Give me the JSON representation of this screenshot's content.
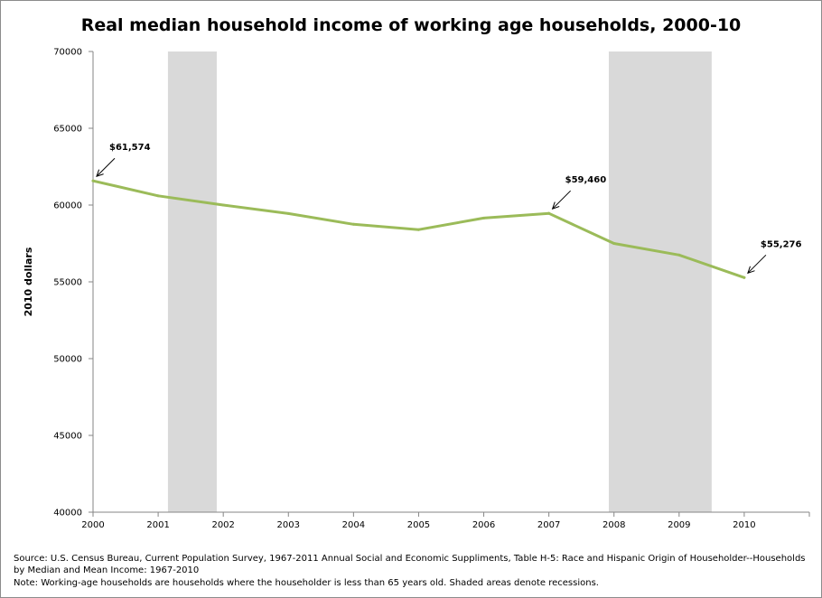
{
  "chart_data": {
    "type": "line",
    "title": "Real median household income of working age households, 2000-10",
    "xlabel": "",
    "ylabel": "2010 dollars",
    "x": [
      2000,
      2001,
      2002,
      2003,
      2004,
      2005,
      2006,
      2007,
      2008,
      2009,
      2010
    ],
    "x_tick_labels": [
      "2000",
      "2001",
      "2002",
      "2003",
      "2004",
      "2005",
      "2006",
      "2007",
      "2008",
      "2009",
      "2010"
    ],
    "xlim": [
      2000,
      2011
    ],
    "ylim": [
      40000,
      70000
    ],
    "y_ticks": [
      40000,
      45000,
      50000,
      55000,
      60000,
      65000,
      70000
    ],
    "y_tick_labels": [
      "40000",
      "45000",
      "50000",
      "55000",
      "60000",
      "65000",
      "70000"
    ],
    "grid": false,
    "legend": "none",
    "series": [
      {
        "values": [
          61574,
          60600,
          60000,
          59450,
          58750,
          58400,
          59150,
          59460,
          57500,
          56750,
          55276
        ],
        "color": "#9bbb59"
      }
    ],
    "recessions": [
      {
        "start": 2001.15,
        "end": 2001.9
      },
      {
        "start": 2007.92,
        "end": 2009.5
      }
    ],
    "recession_color": "#d9d9d9",
    "annotations": [
      {
        "text": "$61,574",
        "x": 2000,
        "y": 61574,
        "label_anchor": "upper-right"
      },
      {
        "text": "$59,460",
        "x": 2007,
        "y": 59460,
        "label_anchor": "upper-right"
      },
      {
        "text": "$55,276",
        "x": 2010,
        "y": 55276,
        "label_anchor": "upper-right"
      }
    ]
  },
  "source_note": "Source: U.S. Census Bureau, Current Population Survey, 1967-2011 Annual Social and Economic Suppliments, Table H-5: Race and Hispanic Origin of Householder--Households by Median and Mean Income: 1967-2010",
  "definition_note": "Note: Working-age households are households where the householder is less than 65 years old.  Shaded areas denote recessions."
}
